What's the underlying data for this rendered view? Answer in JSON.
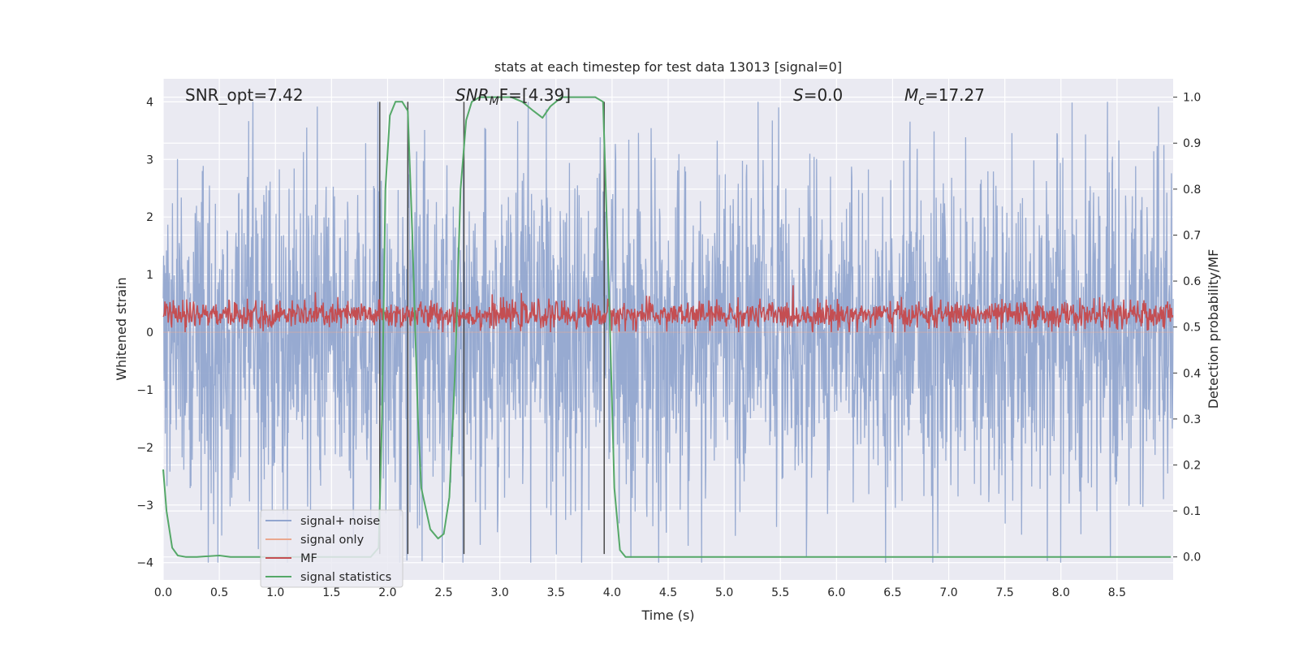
{
  "chart_data": {
    "type": "line",
    "title": "stats at each timestep for test data 13013 [signal=0]",
    "xlabel": "Time (s)",
    "ylabel": "Whitened strain",
    "y2label": "Detection probability/MF",
    "xlim": [
      0,
      9.0
    ],
    "ylim": [
      -4.3,
      4.4
    ],
    "y2lim": [
      -0.05,
      1.04
    ],
    "xticks": [
      "0.0",
      "0.5",
      "1.0",
      "1.5",
      "2.0",
      "2.5",
      "3.0",
      "3.5",
      "4.0",
      "4.5",
      "5.0",
      "5.5",
      "6.0",
      "6.5",
      "7.0",
      "7.5",
      "8.0",
      "8.5"
    ],
    "yticks": [
      "4",
      "3",
      "2",
      "1",
      "0",
      "−1",
      "−2",
      "−3",
      "−4"
    ],
    "y2ticks": [
      "1.0",
      "0.9",
      "0.8",
      "0.7",
      "0.6",
      "0.5",
      "0.4",
      "0.3",
      "0.2",
      "0.1",
      "0.0"
    ],
    "grid": true,
    "legend_position": "lower-left",
    "annotations": {
      "snr_opt": "SNR_opt=7.42",
      "snr_mf_sym": "SNR",
      "snr_mf_sub": "M",
      "snr_mf_rest": "F=[4.39]",
      "s_sym": "S",
      "s_rest": "=0.0",
      "mc_sym": "M",
      "mc_sub": "c",
      "mc_rest": "=17.27"
    },
    "vertical_lines_x": [
      1.93,
      2.18,
      2.68,
      3.93
    ],
    "series": [
      {
        "name": "signal+ noise",
        "color": "#92a6cf",
        "kind": "noise",
        "amplitude": 1.5,
        "peak": 4.0
      },
      {
        "name": "signal only",
        "color": "#eaa88f",
        "kind": "flat",
        "value": 0.0
      },
      {
        "name": "MF",
        "color": "#c44e52",
        "kind": "mf",
        "center": 0.3,
        "amplitude": 0.2
      },
      {
        "name": "signal statistics",
        "color": "#55a868",
        "kind": "prob",
        "x": [
          0.0,
          0.03,
          0.08,
          0.13,
          0.2,
          0.3,
          0.5,
          0.6,
          1.0,
          1.5,
          1.85,
          1.92,
          1.95,
          1.98,
          2.02,
          2.07,
          2.13,
          2.18,
          2.22,
          2.27,
          2.3,
          2.38,
          2.45,
          2.5,
          2.55,
          2.6,
          2.65,
          2.7,
          2.75,
          2.82,
          2.9,
          3.0,
          3.1,
          3.2,
          3.3,
          3.38,
          3.45,
          3.55,
          3.7,
          3.85,
          3.92,
          3.97,
          4.02,
          4.07,
          4.12,
          4.2,
          5.0,
          6.0,
          7.0,
          8.0,
          8.98
        ],
        "y": [
          0.19,
          0.1,
          0.02,
          0.003,
          0.0,
          0.0,
          0.003,
          0.0,
          0.0,
          0.0,
          0.0,
          0.02,
          0.3,
          0.8,
          0.96,
          0.99,
          0.99,
          0.97,
          0.7,
          0.3,
          0.15,
          0.06,
          0.04,
          0.05,
          0.13,
          0.4,
          0.8,
          0.95,
          0.99,
          1.0,
          1.0,
          1.0,
          1.0,
          0.99,
          0.97,
          0.955,
          0.98,
          1.0,
          1.0,
          1.0,
          0.99,
          0.6,
          0.15,
          0.015,
          0.0,
          0.0,
          0.0,
          0.0,
          0.0,
          0.0,
          0.0
        ]
      }
    ]
  }
}
